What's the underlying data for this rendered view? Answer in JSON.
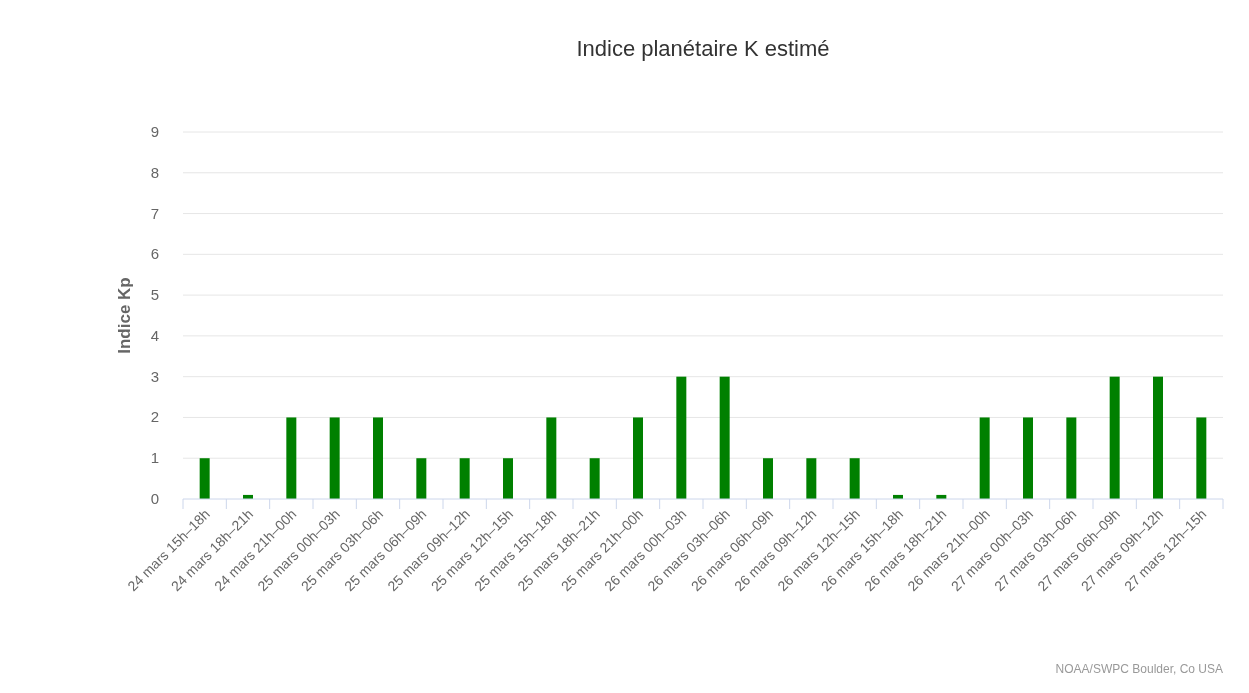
{
  "chart_data": {
    "type": "bar",
    "title": "Indice planétaire K estimé",
    "ylabel": "Indice Kp",
    "categories": [
      "24 mars 15h–18h",
      "24 mars 18h–21h",
      "24 mars 21h–00h",
      "25 mars 00h–03h",
      "25 mars 03h–06h",
      "25 mars 06h–09h",
      "25 mars 09h–12h",
      "25 mars 12h–15h",
      "25 mars 15h–18h",
      "25 mars 18h–21h",
      "25 mars 21h–00h",
      "26 mars 00h–03h",
      "26 mars 03h–06h",
      "26 mars 06h–09h",
      "26 mars 09h–12h",
      "26 mars 12h–15h",
      "26 mars 15h–18h",
      "26 mars 18h–21h",
      "26 mars 21h–00h",
      "27 mars 00h–03h",
      "27 mars 03h–06h",
      "27 mars 06h–09h",
      "27 mars 09h–12h",
      "27 mars 12h–15h"
    ],
    "values": [
      1,
      0.1,
      2,
      2,
      2,
      1,
      1,
      1,
      2,
      1,
      2,
      3,
      3,
      1,
      1,
      1,
      0.1,
      0.1,
      2,
      2,
      2,
      3,
      3,
      2
    ],
    "color": "#008000",
    "ylim": [
      0,
      9
    ],
    "yticks": [
      0,
      1,
      2,
      3,
      4,
      5,
      6,
      7,
      8,
      9
    ],
    "grid": "y",
    "annotations": [
      "NOAA/SWPC Boulder, Co USA"
    ]
  }
}
